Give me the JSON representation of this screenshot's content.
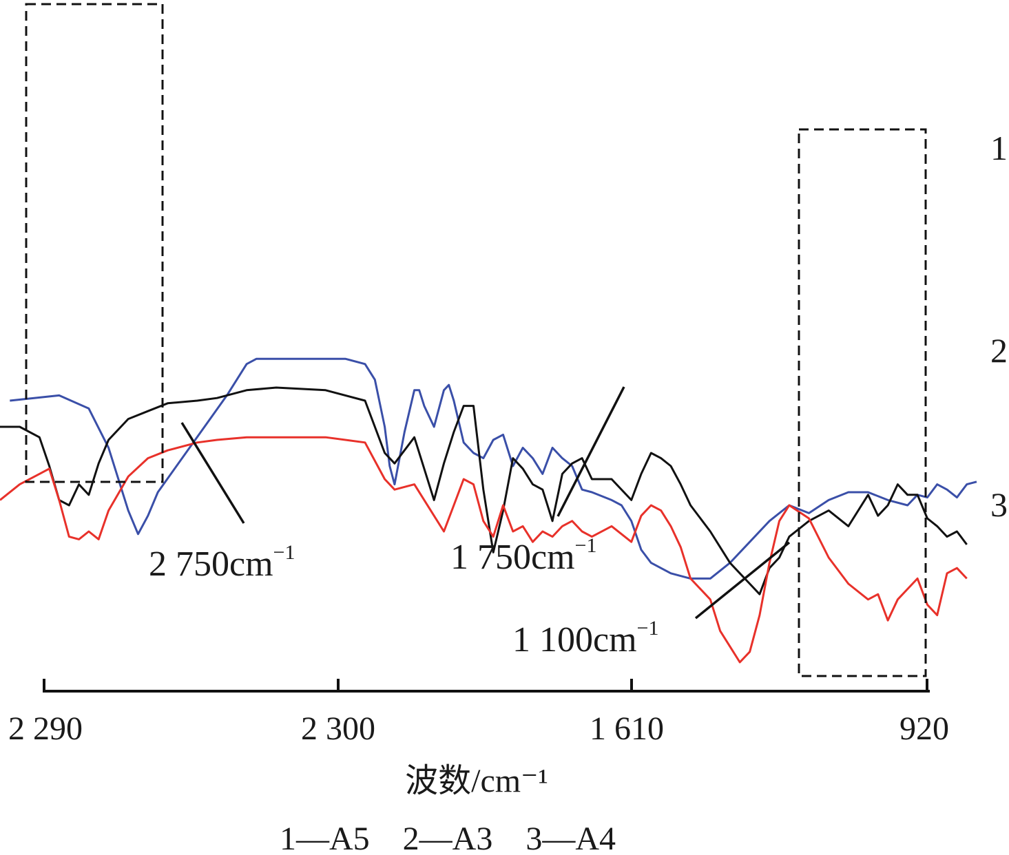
{
  "chart_data": {
    "type": "line",
    "title": "",
    "xlabel": "波数/cm⁻¹",
    "ylabel": "",
    "x_ticks": [
      "2 290",
      "2 300",
      "1 610",
      "920"
    ],
    "x_axis_reversed": true,
    "y_axis_shown": false,
    "grid": false,
    "legend": {
      "placement": "bottom",
      "text": "1—A5　2—A3　3—A4"
    },
    "series": [
      {
        "id": "1",
        "name": "A5",
        "color": "#3a4fa8",
        "x": [
          1,
          6,
          9,
          11,
          13,
          14,
          15,
          16,
          23,
          24,
          25,
          26,
          35,
          37,
          38,
          39,
          39.5,
          40,
          41,
          42,
          42.5,
          43,
          44,
          45,
          45.5,
          46,
          47,
          48,
          49,
          50,
          51,
          52,
          53,
          54,
          55,
          56,
          57,
          58,
          59,
          60,
          62,
          63,
          64,
          65,
          66,
          68,
          70,
          72,
          74,
          76,
          78,
          80,
          82,
          84,
          86,
          88,
          90,
          92,
          93,
          94,
          95,
          96,
          97,
          98,
          99
        ],
        "y": [
          7.0,
          7.2,
          6.7,
          5.2,
          2.8,
          1.9,
          2.6,
          3.5,
          7.2,
          7.8,
          8.4,
          8.6,
          8.6,
          8.4,
          7.8,
          6.0,
          4.5,
          3.8,
          5.8,
          7.4,
          7.4,
          6.8,
          6.0,
          7.4,
          7.6,
          7.0,
          5.4,
          5.0,
          4.8,
          5.5,
          5.7,
          4.5,
          5.2,
          4.8,
          4.2,
          5.2,
          4.8,
          4.5,
          3.6,
          3.5,
          3.2,
          3.0,
          2.4,
          1.3,
          0.8,
          0.4,
          0.2,
          0.2,
          0.8,
          1.6,
          2.4,
          3.0,
          2.7,
          3.2,
          3.5,
          3.5,
          3.2,
          3.0,
          3.4,
          3.3,
          3.8,
          3.6,
          3.3,
          3.8,
          3.9
        ]
      },
      {
        "id": "2",
        "name": "A3",
        "color": "#111111",
        "x": [
          0,
          2,
          4,
          5,
          6,
          7,
          8,
          9,
          10,
          11,
          13,
          15,
          17,
          20,
          22,
          25,
          28,
          33,
          37,
          39,
          40,
          42,
          44,
          45,
          46,
          47,
          48,
          49,
          50,
          51,
          52,
          53,
          54,
          55,
          56,
          57,
          58,
          59,
          60,
          62,
          64,
          65,
          66,
          67,
          68,
          69,
          70,
          72,
          73,
          74,
          75,
          76,
          77,
          78,
          79,
          80,
          82,
          84,
          86,
          88,
          89,
          90,
          91,
          92,
          93,
          94,
          95,
          96,
          97,
          98
        ],
        "y": [
          6.0,
          6.0,
          5.6,
          4.5,
          3.2,
          3.0,
          3.8,
          3.4,
          4.6,
          5.5,
          6.3,
          6.6,
          6.9,
          7.0,
          7.1,
          7.4,
          7.5,
          7.4,
          7.0,
          5.0,
          4.6,
          5.6,
          3.2,
          4.6,
          5.8,
          6.8,
          6.8,
          3.6,
          1.2,
          2.8,
          4.8,
          4.4,
          3.8,
          3.6,
          2.4,
          4.2,
          4.6,
          4.8,
          4.0,
          4.0,
          3.2,
          4.2,
          5.0,
          4.8,
          4.5,
          3.8,
          3.0,
          2.0,
          1.4,
          0.8,
          0.4,
          0.0,
          -0.4,
          0.6,
          1.0,
          1.8,
          2.4,
          2.8,
          2.2,
          3.4,
          2.6,
          3.0,
          3.8,
          3.4,
          3.4,
          2.5,
          2.2,
          1.8,
          2.0,
          1.5
        ]
      },
      {
        "id": "3",
        "name": "A4",
        "color": "#e8312a",
        "x": [
          0,
          2,
          4,
          5,
          6,
          7,
          8,
          9,
          10,
          11,
          13,
          15,
          17,
          20,
          22,
          25,
          28,
          33,
          37,
          39,
          40,
          42,
          44,
          45,
          46,
          47,
          48,
          49,
          50,
          51,
          52,
          53,
          54,
          55,
          56,
          57,
          58,
          59,
          60,
          62,
          64,
          65,
          66,
          67,
          68,
          69,
          70,
          72,
          73,
          74,
          75,
          76,
          77,
          78,
          79,
          80,
          82,
          84,
          86,
          88,
          89,
          90,
          91,
          92,
          93,
          94,
          95,
          96,
          97,
          98
        ],
        "y": [
          3.2,
          3.8,
          4.2,
          4.4,
          3.2,
          1.8,
          1.7,
          2.0,
          1.7,
          2.8,
          4.1,
          4.8,
          5.1,
          5.4,
          5.5,
          5.6,
          5.6,
          5.6,
          5.4,
          4.0,
          3.6,
          3.8,
          2.6,
          2.0,
          3.0,
          4.0,
          3.8,
          2.4,
          1.8,
          3.0,
          2.0,
          2.2,
          1.6,
          2.0,
          1.8,
          2.2,
          2.4,
          2.0,
          1.8,
          2.2,
          1.6,
          2.6,
          3.0,
          2.8,
          2.2,
          1.4,
          0.2,
          -0.6,
          -1.8,
          -2.4,
          -3.0,
          -2.6,
          -1.2,
          0.8,
          2.4,
          3.0,
          2.5,
          1.0,
          0.0,
          -0.6,
          -0.4,
          -1.4,
          -0.6,
          -0.2,
          0.2,
          -0.8,
          -1.2,
          0.4,
          0.6,
          0.2
        ]
      }
    ],
    "curve_labels": [
      "1",
      "2",
      "3"
    ],
    "annotations": [
      {
        "text": "2 750cm",
        "sup": "−1"
      },
      {
        "text": "1 750cm",
        "sup": "−1"
      },
      {
        "text": "1 100cm",
        "sup": "−1"
      }
    ]
  }
}
